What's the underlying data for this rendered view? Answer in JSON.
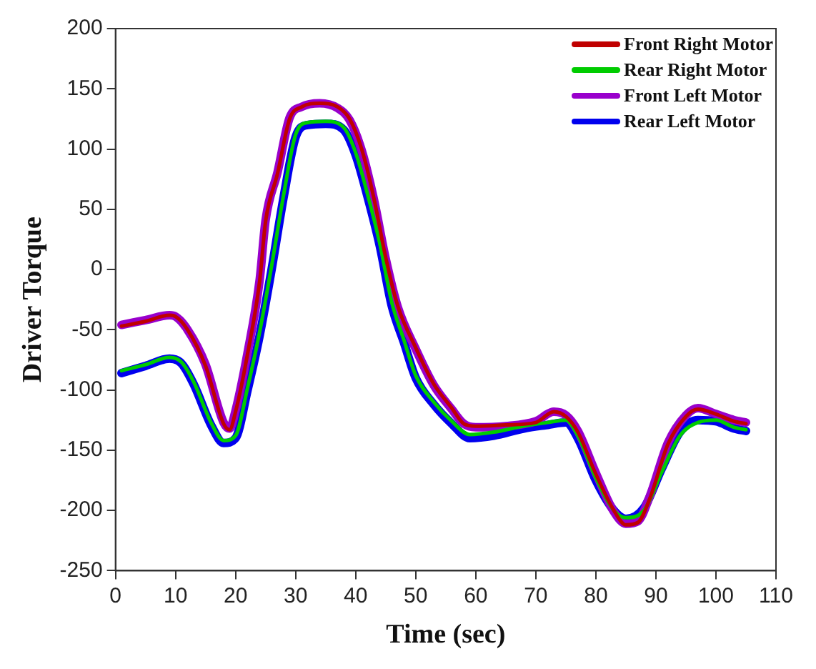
{
  "chart_data": {
    "type": "line",
    "xlabel": "Time (sec)",
    "ylabel": "Driver Torque",
    "xlim": [
      0,
      110
    ],
    "xticks": [
      0,
      10,
      20,
      30,
      40,
      50,
      60,
      70,
      80,
      90,
      100,
      110
    ],
    "ylim": [
      -250,
      200
    ],
    "yticks": [
      -250,
      -200,
      -150,
      -100,
      -50,
      0,
      50,
      100,
      150,
      200
    ],
    "grid": false,
    "legend": "top right",
    "marker": "none",
    "line_style": "solid",
    "series": [
      {
        "name": "Front Right Motor",
        "color": "#c00000",
        "x": [
          1,
          5,
          9,
          10,
          12,
          15,
          18,
          19,
          20,
          22,
          24,
          25,
          27,
          29,
          31,
          34,
          37,
          39,
          41,
          43,
          45,
          47,
          50,
          53,
          56,
          58,
          60,
          65,
          70,
          73,
          75,
          77,
          80,
          83,
          85,
          87,
          89,
          92,
          95,
          97,
          100,
          103,
          105
        ],
        "values": [
          -47,
          -43,
          -38,
          -39,
          -50,
          -80,
          -128,
          -133,
          -118,
          -70,
          -10,
          40,
          80,
          125,
          135,
          138,
          135,
          125,
          100,
          60,
          10,
          -30,
          -65,
          -95,
          -115,
          -128,
          -130,
          -129,
          -127,
          -118,
          -122,
          -135,
          -170,
          -200,
          -212,
          -210,
          -190,
          -145,
          -122,
          -116,
          -120,
          -126,
          -128
        ]
      },
      {
        "name": "Rear Right Motor",
        "color": "#00cc00",
        "x": [
          1,
          5,
          9,
          11,
          13,
          16,
          18,
          20,
          22,
          24,
          26,
          28,
          30,
          32,
          35,
          38,
          40,
          42,
          44,
          46,
          48,
          50,
          53,
          56,
          59,
          63,
          68,
          72,
          75,
          77,
          80,
          83,
          85,
          88,
          91,
          94,
          97,
          100,
          103,
          105
        ],
        "values": [
          -84,
          -79,
          -73,
          -77,
          -93,
          -128,
          -142,
          -138,
          -98,
          -52,
          3,
          62,
          112,
          122,
          123,
          118,
          97,
          62,
          22,
          -27,
          -58,
          -88,
          -110,
          -126,
          -137,
          -135,
          -130,
          -127,
          -125,
          -138,
          -173,
          -200,
          -206,
          -200,
          -168,
          -138,
          -127,
          -125,
          -131,
          -133
        ]
      },
      {
        "name": "Front Left Motor",
        "color": "#9900cc",
        "x": [
          1,
          5,
          9,
          10,
          12,
          15,
          18,
          19,
          20,
          22,
          24,
          25,
          27,
          29,
          31,
          34,
          37,
          39,
          41,
          43,
          45,
          47,
          50,
          53,
          56,
          58,
          60,
          65,
          70,
          73,
          75,
          77,
          80,
          83,
          85,
          87,
          89,
          92,
          95,
          97,
          100,
          103,
          105
        ],
        "values": [
          -46,
          -42,
          -38,
          -39,
          -50,
          -79,
          -127,
          -132,
          -117,
          -69,
          -9,
          41,
          81,
          126,
          135,
          138,
          134,
          124,
          99,
          59,
          9,
          -31,
          -66,
          -96,
          -116,
          -128,
          -131,
          -130,
          -126,
          -118,
          -121,
          -134,
          -169,
          -201,
          -211,
          -209,
          -188,
          -144,
          -121,
          -115,
          -120,
          -125,
          -127
        ]
      },
      {
        "name": "Rear Left Motor",
        "color": "#0000ee",
        "x": [
          1,
          5,
          9,
          11,
          13,
          16,
          18,
          20,
          22,
          24,
          26,
          28,
          30,
          32,
          35,
          38,
          40,
          42,
          44,
          46,
          48,
          50,
          53,
          56,
          59,
          63,
          68,
          72,
          75,
          77,
          80,
          83,
          85,
          88,
          91,
          94,
          97,
          100,
          103,
          105
        ],
        "values": [
          -86,
          -80,
          -74,
          -78,
          -95,
          -130,
          -144,
          -140,
          -100,
          -55,
          0,
          60,
          110,
          120,
          121,
          116,
          95,
          60,
          20,
          -30,
          -60,
          -90,
          -112,
          -128,
          -140,
          -138,
          -132,
          -129,
          -127,
          -140,
          -175,
          -200,
          -207,
          -198,
          -165,
          -135,
          -125,
          -126,
          -132,
          -134
        ]
      }
    ]
  }
}
